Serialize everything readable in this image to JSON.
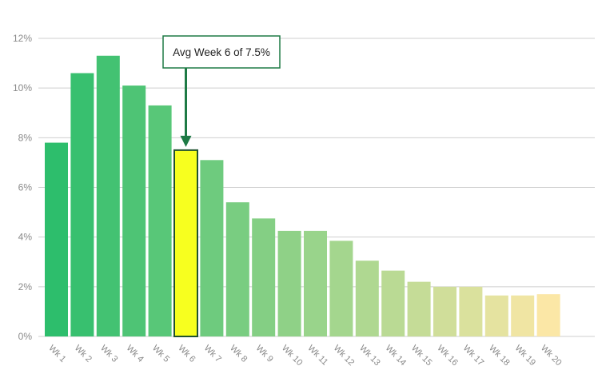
{
  "chart_data": {
    "type": "bar",
    "categories": [
      "Wk 1",
      "Wk 2",
      "Wk 3",
      "Wk 4",
      "Wk 5",
      "Wk 6",
      "Wk 7",
      "Wk 8",
      "Wk 9",
      "Wk 10",
      "Wk 11",
      "Wk 12",
      "Wk 13",
      "Wk 14",
      "Wk 15",
      "Wk 16",
      "Wk 17",
      "Wk 18",
      "Wk 19",
      "Wk 20"
    ],
    "values": [
      7.8,
      10.6,
      11.3,
      10.1,
      9.3,
      7.5,
      7.1,
      5.4,
      4.75,
      4.25,
      4.25,
      3.85,
      3.05,
      2.65,
      2.2,
      2.0,
      2.0,
      1.65,
      1.65,
      1.7
    ],
    "title": "",
    "xlabel": "",
    "ylabel": "",
    "ylim": [
      0,
      12
    ],
    "yticks": [
      0,
      2,
      4,
      6,
      8,
      10,
      12
    ],
    "ytick_labels": [
      "0%",
      "2%",
      "4%",
      "6%",
      "8%",
      "10%",
      "12%"
    ],
    "grid": true,
    "highlight_index": 5,
    "annotation": {
      "text": "Avg Week 6 of 7.5%",
      "target_category": "Wk 6"
    },
    "colors": {
      "bar_start": "#2dbe6c",
      "bar_end": "#fbe7a6",
      "highlight": "#f7ff1f",
      "annotation": "#1e7a45",
      "grid": "#cfcfcf",
      "axis_text": "#8a8a8a"
    }
  }
}
